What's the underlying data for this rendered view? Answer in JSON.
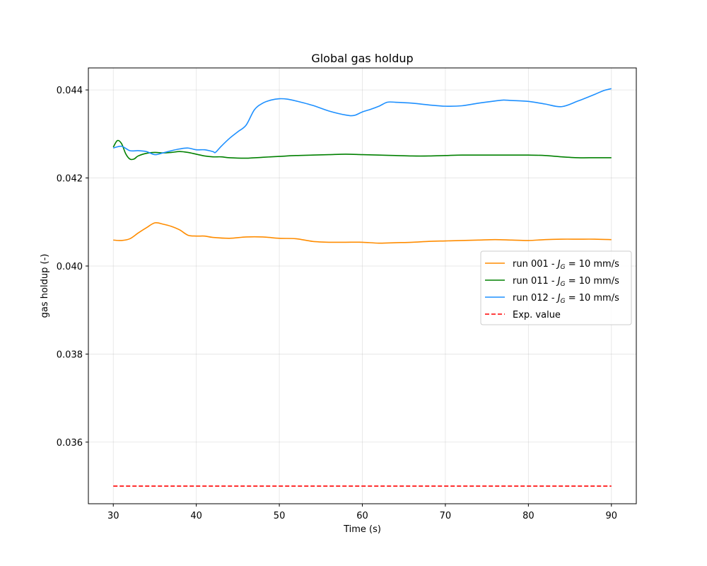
{
  "chart_data": {
    "type": "line",
    "title": "Global gas holdup",
    "xlabel": "Time (s)",
    "ylabel": "gas holdup (-)",
    "xlim": [
      27,
      93
    ],
    "ylim": [
      0.0346,
      0.0445
    ],
    "xticks": [
      30,
      40,
      50,
      60,
      70,
      80,
      90
    ],
    "yticks": [
      0.036,
      0.038,
      0.04,
      0.042,
      0.044
    ],
    "ytick_labels": [
      "0.036",
      "0.038",
      "0.040",
      "0.042",
      "0.044"
    ],
    "grid": true,
    "legend_position": "center-right",
    "series": [
      {
        "name": "run 001 - J_G = 10 mm/s",
        "legend_prefix": "run 001 - ",
        "legend_var": "J",
        "legend_sub": "G",
        "legend_suffix": " = 10 mm/s",
        "color": "#ff8c00",
        "style": "solid",
        "x": [
          30,
          31,
          32,
          33,
          34,
          35,
          36,
          37,
          38,
          39,
          40,
          41,
          42,
          44,
          46,
          48,
          50,
          52,
          54,
          56,
          58,
          60,
          62,
          64,
          66,
          68,
          70,
          72,
          74,
          76,
          78,
          80,
          82,
          84,
          86,
          88,
          90
        ],
        "y": [
          0.04059,
          0.04058,
          0.04062,
          0.04075,
          0.04087,
          0.04098,
          0.04095,
          0.0409,
          0.04082,
          0.0407,
          0.04068,
          0.04068,
          0.04065,
          0.04063,
          0.04066,
          0.04066,
          0.04063,
          0.04062,
          0.04056,
          0.04054,
          0.04054,
          0.04054,
          0.04052,
          0.04053,
          0.04054,
          0.04056,
          0.04057,
          0.04058,
          0.04059,
          0.0406,
          0.04059,
          0.04058,
          0.0406,
          0.04061,
          0.04061,
          0.04061,
          0.0406
        ]
      },
      {
        "name": "run 011 - J_G = 10 mm/s",
        "legend_prefix": "run 011 - ",
        "legend_var": "J",
        "legend_sub": "G",
        "legend_suffix": " = 10 mm/s",
        "color": "#008000",
        "style": "solid",
        "x": [
          30,
          30.5,
          31,
          31.5,
          32,
          32.5,
          33,
          34,
          35,
          36,
          37,
          38,
          39,
          40,
          41,
          42,
          43,
          44,
          46,
          48,
          50,
          52,
          54,
          56,
          58,
          60,
          62,
          64,
          66,
          68,
          70,
          72,
          74,
          76,
          78,
          80,
          82,
          84,
          86,
          88,
          90
        ],
        "y": [
          0.0427,
          0.04285,
          0.04278,
          0.04255,
          0.04243,
          0.04243,
          0.0425,
          0.04256,
          0.04258,
          0.04257,
          0.04258,
          0.0426,
          0.04258,
          0.04254,
          0.0425,
          0.04248,
          0.04248,
          0.04246,
          0.04245,
          0.04247,
          0.04249,
          0.04251,
          0.04252,
          0.04253,
          0.04254,
          0.04253,
          0.04252,
          0.04251,
          0.0425,
          0.0425,
          0.04251,
          0.04252,
          0.04252,
          0.04252,
          0.04252,
          0.04252,
          0.04251,
          0.04248,
          0.04246,
          0.04246,
          0.04246
        ]
      },
      {
        "name": "run 012 - J_G = 10 mm/s",
        "legend_prefix": "run 012 - ",
        "legend_var": "J",
        "legend_sub": "G",
        "legend_suffix": " = 10 mm/s",
        "color": "#1e90ff",
        "style": "solid",
        "x": [
          30,
          31,
          32,
          33,
          34,
          35,
          36,
          37,
          38,
          39,
          40,
          41,
          42,
          42.3,
          43,
          44,
          45,
          46,
          47,
          48,
          49,
          50,
          51,
          52,
          54,
          56,
          58,
          59,
          60,
          61,
          62,
          63,
          64,
          66,
          68,
          70,
          72,
          74,
          76,
          77,
          78,
          80,
          82,
          84,
          86,
          88,
          89,
          90
        ],
        "y": [
          0.04268,
          0.04272,
          0.04262,
          0.04262,
          0.0426,
          0.04253,
          0.04257,
          0.04262,
          0.04266,
          0.04268,
          0.04264,
          0.04264,
          0.0426,
          0.04258,
          0.04272,
          0.0429,
          0.04305,
          0.0432,
          0.04355,
          0.0437,
          0.04377,
          0.0438,
          0.04379,
          0.04375,
          0.04365,
          0.04352,
          0.04343,
          0.04342,
          0.0435,
          0.04356,
          0.04363,
          0.04372,
          0.04372,
          0.0437,
          0.04366,
          0.04363,
          0.04364,
          0.0437,
          0.04375,
          0.04377,
          0.04376,
          0.04374,
          0.04368,
          0.04362,
          0.04375,
          0.0439,
          0.04398,
          0.04403
        ]
      },
      {
        "name": "Exp. value",
        "color": "#ff0000",
        "style": "dashed",
        "x": [
          30,
          90
        ],
        "y": [
          0.035,
          0.035
        ]
      }
    ]
  }
}
